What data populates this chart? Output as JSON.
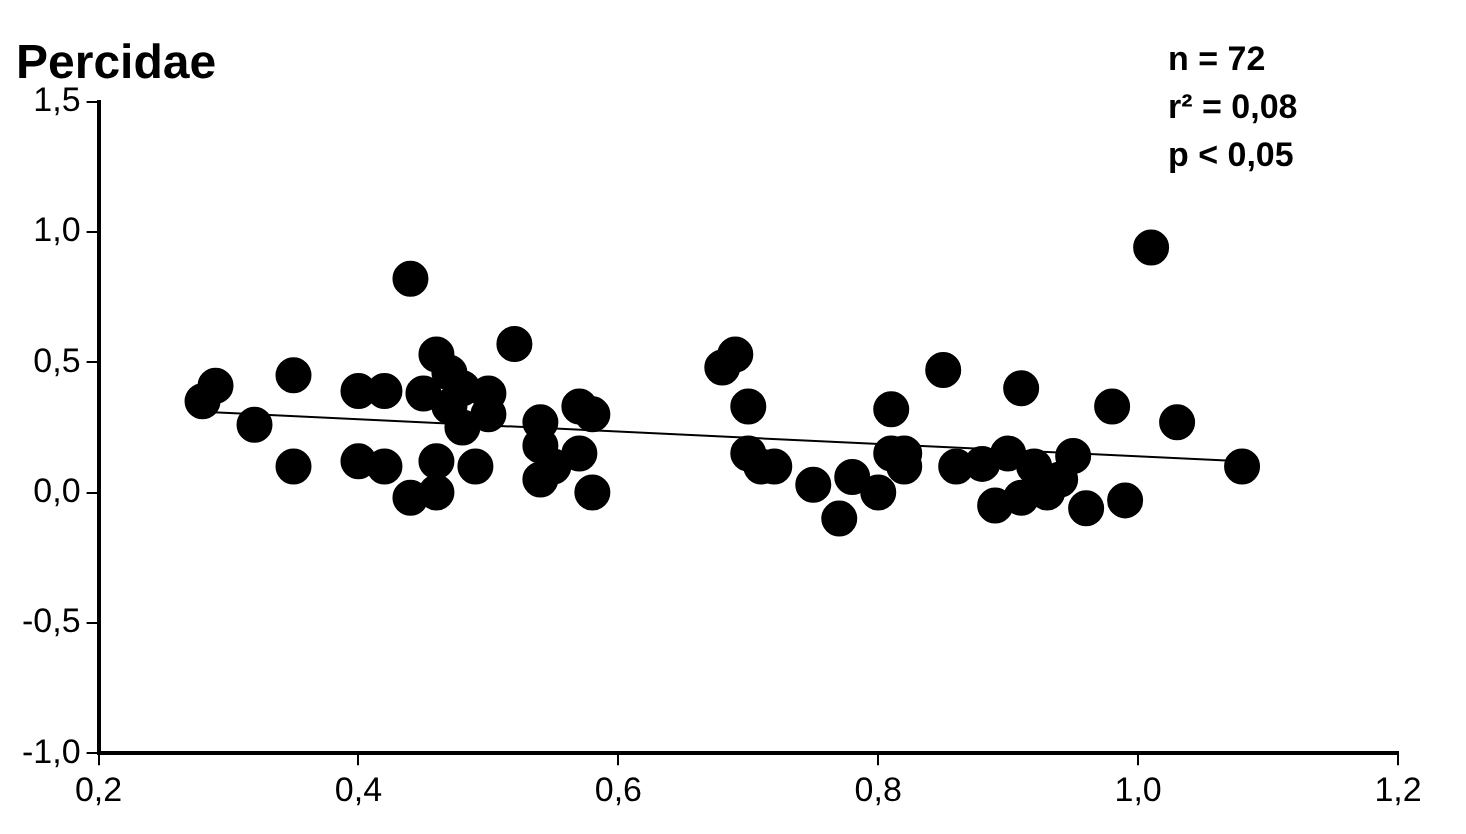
{
  "chart_data": {
    "type": "scatter",
    "title": "Percidae",
    "annotations": [
      "n = 72",
      "r² = 0,08",
      "p < 0,05"
    ],
    "xlim": [
      0.2,
      1.2
    ],
    "ylim": [
      -1.0,
      1.5
    ],
    "xticks": [
      {
        "value": 0.2,
        "label": "0,2"
      },
      {
        "value": 0.4,
        "label": "0,4"
      },
      {
        "value": 0.6,
        "label": "0,6"
      },
      {
        "value": 0.8,
        "label": "0,8"
      },
      {
        "value": 1.0,
        "label": "1,0"
      },
      {
        "value": 1.2,
        "label": "1,2"
      }
    ],
    "yticks": [
      {
        "value": -1.0,
        "label": "-1,0"
      },
      {
        "value": -0.5,
        "label": "-0,5"
      },
      {
        "value": 0.0,
        "label": "0,0"
      },
      {
        "value": 0.5,
        "label": "0,5"
      },
      {
        "value": 1.0,
        "label": "1,0"
      },
      {
        "value": 1.5,
        "label": "1,5"
      }
    ],
    "grid": false,
    "legend": false,
    "marker": "circle",
    "series": [
      {
        "color": "#000000",
        "x": [
          0.28,
          0.29,
          0.32,
          0.35,
          0.35,
          0.4,
          0.4,
          0.42,
          0.42,
          0.44,
          0.44,
          0.45,
          0.46,
          0.46,
          0.46,
          0.47,
          0.47,
          0.48,
          0.48,
          0.49,
          0.5,
          0.5,
          0.52,
          0.54,
          0.54,
          0.54,
          0.55,
          0.57,
          0.57,
          0.58,
          0.58,
          0.68,
          0.69,
          0.7,
          0.7,
          0.71,
          0.72,
          0.75,
          0.77,
          0.78,
          0.8,
          0.81,
          0.81,
          0.82,
          0.82,
          0.85,
          0.86,
          0.88,
          0.89,
          0.9,
          0.91,
          0.91,
          0.92,
          0.93,
          0.94,
          0.95,
          0.96,
          0.98,
          0.99,
          1.01,
          1.03,
          1.08
        ],
        "values": [
          0.35,
          0.41,
          0.26,
          0.45,
          0.1,
          0.39,
          0.12,
          0.39,
          0.1,
          0.82,
          -0.02,
          0.38,
          0.53,
          0.12,
          0.0,
          0.46,
          0.33,
          0.4,
          0.25,
          0.1,
          0.38,
          0.3,
          0.57,
          0.27,
          0.18,
          0.05,
          0.1,
          0.33,
          0.15,
          0.3,
          0.0,
          0.48,
          0.53,
          0.33,
          0.15,
          0.1,
          0.1,
          0.03,
          -0.1,
          0.06,
          0.0,
          0.32,
          0.15,
          0.1,
          0.15,
          0.47,
          0.1,
          0.11,
          -0.05,
          0.15,
          0.4,
          -0.02,
          0.1,
          0.0,
          0.05,
          0.14,
          -0.06,
          0.33,
          -0.03,
          0.94,
          0.27,
          0.1
        ]
      },
      {
        "type": "line",
        "color": "#000000",
        "marker": "none",
        "x": [
          0.28,
          1.08
        ],
        "values": [
          0.31,
          0.12
        ]
      }
    ]
  }
}
